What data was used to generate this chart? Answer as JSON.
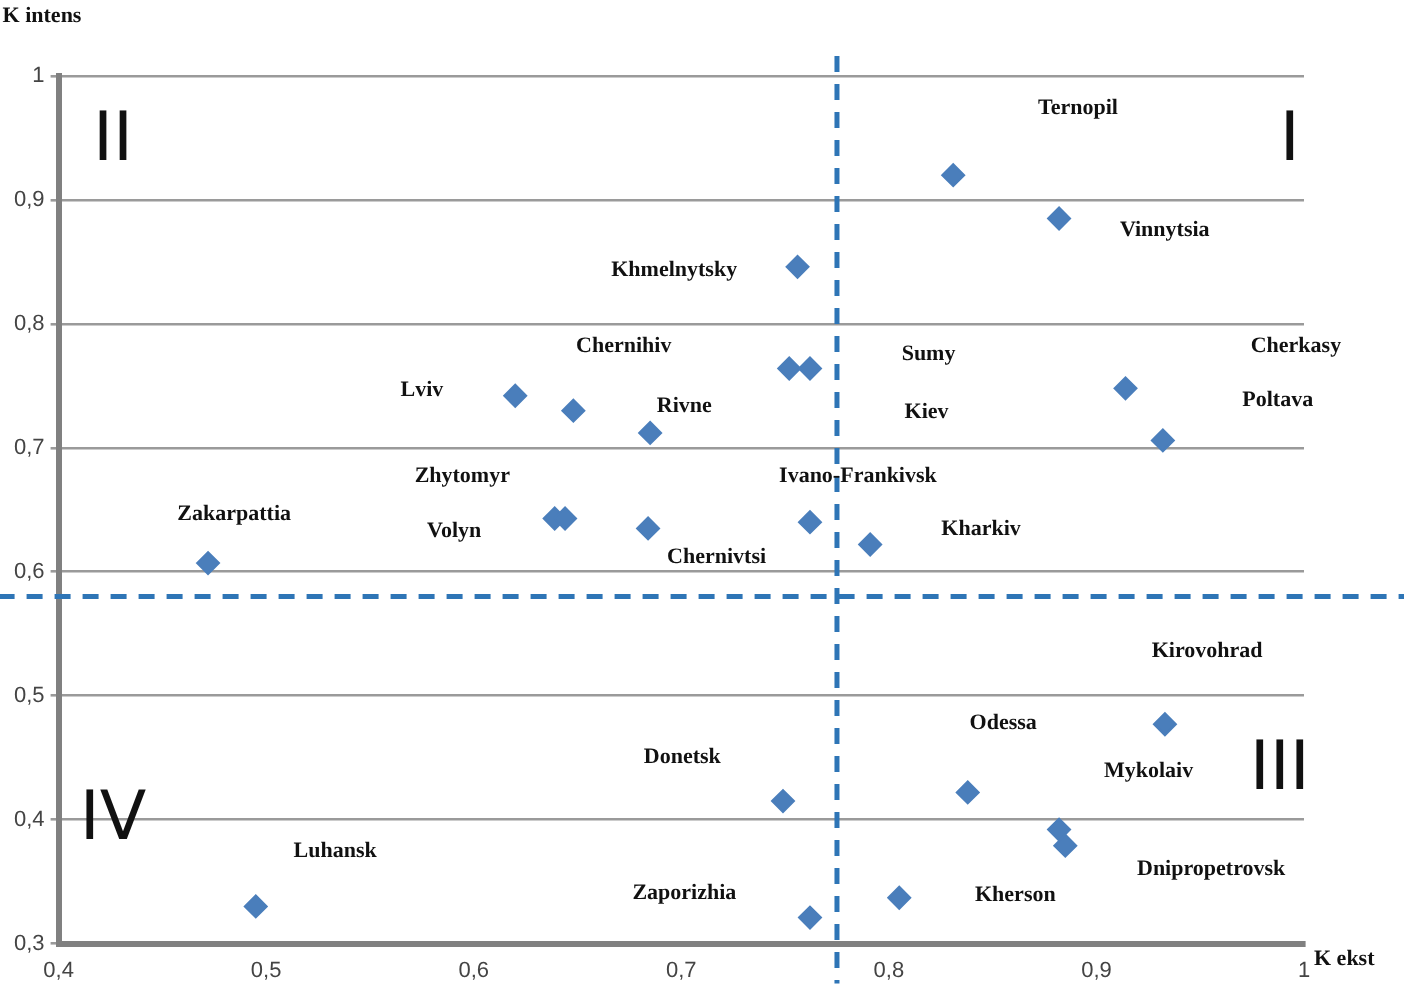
{
  "chart_data": {
    "type": "scatter",
    "xlabel": "K ekst",
    "ylabel": "K intens",
    "x": [
      0.831,
      0.882,
      0.756,
      0.752,
      0.762,
      0.62,
      0.648,
      0.685,
      0.914,
      0.932,
      0.639,
      0.644,
      0.684,
      0.762,
      0.791,
      0.472,
      0.933,
      0.838,
      0.749,
      0.882,
      0.885,
      0.495,
      0.762,
      0.805
    ],
    "series": [
      {
        "color": "#4a7ebb",
        "values": [
          0.92,
          0.885,
          0.846,
          0.764,
          0.764,
          0.742,
          0.73,
          0.712,
          0.748,
          0.706,
          0.643,
          0.643,
          0.635,
          0.64,
          0.622,
          0.607,
          0.477,
          0.422,
          0.415,
          0.392,
          0.379,
          0.33,
          0.321,
          0.337
        ]
      }
    ],
    "marker": "diamond",
    "xlim": [
      0.4,
      1
    ],
    "xticks": [
      {
        "value": 0.4,
        "label": "0,4"
      },
      {
        "value": 0.5,
        "label": "0,5"
      },
      {
        "value": 0.6,
        "label": "0,6"
      },
      {
        "value": 0.7,
        "label": "0,7"
      },
      {
        "value": 0.8,
        "label": "0,8"
      },
      {
        "value": 0.9,
        "label": "0,9"
      },
      1
    ],
    "ylim": [
      0.3,
      1
    ],
    "yticks": [
      {
        "value": 0.3,
        "label": "0,3"
      },
      {
        "value": 0.4,
        "label": "0,4"
      },
      {
        "value": 0.5,
        "label": "0,5"
      },
      {
        "value": 0.6,
        "label": "0,6"
      },
      {
        "value": 0.7,
        "label": "0,7"
      },
      {
        "value": 0.8,
        "label": "0,8"
      },
      {
        "value": 0.9,
        "label": "0,9"
      },
      1
    ],
    "grid": "y",
    "ref_lines": [
      {
        "axis": "x",
        "value": 0.775,
        "color": "#2e75b6",
        "line_style": "dashed"
      },
      {
        "axis": "y",
        "value": 0.58,
        "color": "#2e75b6",
        "line_style": "dashed"
      }
    ],
    "annotations": [
      "Ternopil",
      "Vinnytsia",
      "Khmelnytsky",
      "Chernihiv",
      "Lviv",
      "Rivne",
      "Sumy",
      "Kiev",
      "Cherkasy",
      "Poltava",
      "Zhytomyr",
      "Volyn",
      "Ivano-Frankivsk",
      "Chernivtsi",
      "Kharkiv",
      "Zakarpattia",
      "Kirovohrad",
      "Odessa",
      "Mykolaiv",
      "Donetsk",
      "Dnipropetrovsk",
      "Luhansk",
      "Zaporizhia",
      "Kherson",
      "I",
      "II",
      "III",
      "IV"
    ]
  }
}
